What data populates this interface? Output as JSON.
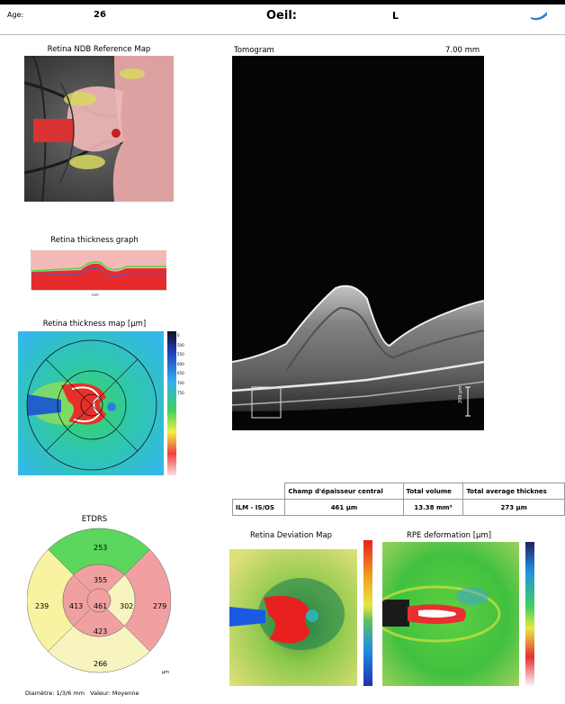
{
  "header": {
    "age_label": "Age:",
    "age_value": "26",
    "eye_label": "Oeil:",
    "eye_value": "L"
  },
  "reference_map": {
    "title": "Retina NDB Reference Map"
  },
  "thickness_graph": {
    "title": "Retina thickness graph"
  },
  "thickness_map": {
    "title": "Retina thickness map [µm]",
    "scale_ticks": [
      "0",
      "",
      "",
      "",
      "",
      "",
      "",
      "",
      "",
      "500",
      "550",
      "600",
      "650",
      "700",
      "750"
    ]
  },
  "tomogram": {
    "title": "Tomogram",
    "width_label": "7.00 mm",
    "scale_bar_label": "200 µm"
  },
  "stats_table": {
    "headers": [
      "",
      "Champ d'épaisseur central",
      "Total volume",
      "Total average thicknes"
    ],
    "rows": [
      [
        "ILM - IS/OS",
        "461 µm",
        "13.38 mm³",
        "273 µm"
      ]
    ]
  },
  "etdrs": {
    "title": "ETDRS",
    "center": "461",
    "inner": {
      "superior": "355",
      "nasal": "413",
      "inferior": "423",
      "temporal": "302"
    },
    "outer": {
      "superior": "253",
      "nasal": "239",
      "inferior": "266",
      "temporal": "279"
    },
    "unit": "µm",
    "footer": "Diamètre: 1/3/6 mm   Valeur: Moyenne",
    "colors": {
      "green": "#5cd65c",
      "yellow": "#f7f3a0",
      "pink": "#f0a0a0",
      "paleyellow": "#f8f4c0"
    }
  },
  "deviation_map": {
    "title": "Retina Deviation Map"
  },
  "rpe_map": {
    "title": "RPE deformation [µm]"
  }
}
